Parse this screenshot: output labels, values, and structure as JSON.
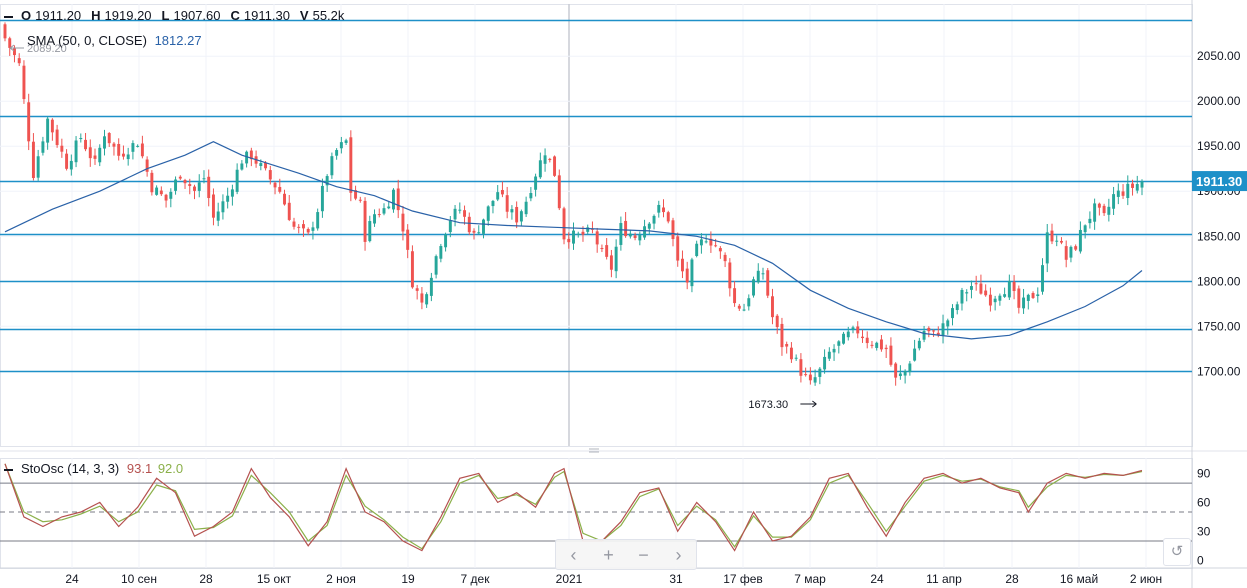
{
  "ohlcv": {
    "o_label": "O",
    "o": "1911.20",
    "h_label": "H",
    "h": "1919.20",
    "l_label": "L",
    "l": "1907.60",
    "c_label": "C",
    "c": "1911.30",
    "v_label": "V",
    "v": "55.2k"
  },
  "sma_legend": {
    "label": "SMA (50, 0, CLOSE)",
    "value": "1812.27",
    "color": "#2a62a8"
  },
  "stoch_legend": {
    "label": "StoOsc (14, 3, 3)",
    "k": "93.1",
    "d": "92.0",
    "k_color": "#b5514f",
    "d_color": "#8bb04a"
  },
  "nav": {
    "left": "‹",
    "plus": "+",
    "minus": "−",
    "right": "›",
    "reset": "↺"
  },
  "colors": {
    "up": "#26a69a",
    "down": "#ef5350",
    "hline": "#1e90c8",
    "price_tag": "#1e90c8"
  },
  "chart_data": {
    "type": "candlestick",
    "y_ticks": [
      1700,
      1750,
      1800,
      1850,
      1900,
      1950,
      2000,
      2050
    ],
    "y_tick_labels": [
      "1700.00",
      "1750.00",
      "1800.00",
      "1850.00",
      "1900.00",
      "1950.00",
      "2000.00",
      "2050.00"
    ],
    "ylim": [
      1617,
      2108
    ],
    "last_price": "1911.30",
    "high_annotation": "2089.20",
    "low_annotation": "1673.30",
    "horizontal_levels": [
      2090,
      1984,
      1911,
      1852,
      1800,
      1747,
      1700
    ],
    "x_labels": [
      "24",
      "10 сен",
      "28",
      "15 окт",
      "2 ноя",
      "19",
      "7 дек",
      "2021",
      "31",
      "17 фев",
      "7 мар",
      "24",
      "11 апр",
      "28",
      "16 май",
      "2 июн"
    ],
    "close_path": [
      [
        0,
        2070
      ],
      [
        3,
        2040
      ],
      [
        6,
        1920
      ],
      [
        9,
        1980
      ],
      [
        13,
        1930
      ],
      [
        16,
        1960
      ],
      [
        19,
        1930
      ],
      [
        21,
        1965
      ],
      [
        24,
        1940
      ],
      [
        28,
        1955
      ],
      [
        31,
        1905
      ],
      [
        34,
        1890
      ],
      [
        37,
        1920
      ],
      [
        40,
        1900
      ],
      [
        42,
        1915
      ],
      [
        44,
        1870
      ],
      [
        47,
        1895
      ],
      [
        50,
        1935
      ],
      [
        52,
        1940
      ],
      [
        55,
        1920
      ],
      [
        58,
        1900
      ],
      [
        61,
        1860
      ],
      [
        64,
        1850
      ],
      [
        66,
        1880
      ],
      [
        68,
        1920
      ],
      [
        70,
        1945
      ],
      [
        72,
        1955
      ],
      [
        73,
        1900
      ],
      [
        75,
        1885
      ],
      [
        76,
        1850
      ],
      [
        78,
        1875
      ],
      [
        80,
        1880
      ],
      [
        82,
        1900
      ],
      [
        84,
        1860
      ],
      [
        86,
        1800
      ],
      [
        88,
        1775
      ],
      [
        90,
        1810
      ],
      [
        92,
        1845
      ],
      [
        94,
        1870
      ],
      [
        96,
        1880
      ],
      [
        99,
        1850
      ],
      [
        101,
        1870
      ],
      [
        104,
        1900
      ],
      [
        106,
        1880
      ],
      [
        108,
        1870
      ],
      [
        110,
        1890
      ],
      [
        112,
        1920
      ],
      [
        114,
        1945
      ],
      [
        116,
        1920
      ],
      [
        118,
        1850
      ],
      [
        121,
        1850
      ],
      [
        124,
        1855
      ],
      [
        126,
        1830
      ],
      [
        128,
        1815
      ],
      [
        130,
        1860
      ],
      [
        133,
        1850
      ],
      [
        136,
        1870
      ],
      [
        138,
        1880
      ],
      [
        140,
        1870
      ],
      [
        142,
        1820
      ],
      [
        144,
        1800
      ],
      [
        146,
        1835
      ],
      [
        148,
        1850
      ],
      [
        150,
        1840
      ],
      [
        152,
        1820
      ],
      [
        154,
        1775
      ],
      [
        156,
        1770
      ],
      [
        158,
        1800
      ],
      [
        160,
        1810
      ],
      [
        162,
        1760
      ],
      [
        164,
        1730
      ],
      [
        166,
        1720
      ],
      [
        168,
        1700
      ],
      [
        170,
        1685
      ],
      [
        172,
        1700
      ],
      [
        174,
        1720
      ],
      [
        176,
        1730
      ],
      [
        178,
        1740
      ],
      [
        180,
        1745
      ],
      [
        182,
        1735
      ],
      [
        184,
        1730
      ],
      [
        186,
        1725
      ],
      [
        188,
        1690
      ],
      [
        190,
        1700
      ],
      [
        192,
        1725
      ],
      [
        194,
        1745
      ],
      [
        196,
        1740
      ],
      [
        198,
        1750
      ],
      [
        200,
        1765
      ],
      [
        202,
        1785
      ],
      [
        204,
        1795
      ],
      [
        206,
        1790
      ],
      [
        208,
        1780
      ],
      [
        210,
        1790
      ],
      [
        212,
        1795
      ],
      [
        214,
        1770
      ],
      [
        216,
        1780
      ],
      [
        218,
        1790
      ],
      [
        220,
        1850
      ],
      [
        222,
        1850
      ],
      [
        224,
        1825
      ],
      [
        226,
        1840
      ],
      [
        228,
        1865
      ],
      [
        230,
        1880
      ],
      [
        232,
        1870
      ],
      [
        234,
        1895
      ],
      [
        236,
        1900
      ],
      [
        238,
        1905
      ],
      [
        240,
        1911
      ]
    ],
    "series": [
      {
        "name": "SMA (50, 0, CLOSE)",
        "points": [
          [
            0,
            1855
          ],
          [
            10,
            1880
          ],
          [
            20,
            1900
          ],
          [
            30,
            1925
          ],
          [
            38,
            1940
          ],
          [
            44,
            1955
          ],
          [
            50,
            1940
          ],
          [
            56,
            1930
          ],
          [
            62,
            1920
          ],
          [
            70,
            1905
          ],
          [
            78,
            1895
          ],
          [
            86,
            1878
          ],
          [
            96,
            1865
          ],
          [
            106,
            1862
          ],
          [
            116,
            1860
          ],
          [
            126,
            1858
          ],
          [
            136,
            1856
          ],
          [
            146,
            1850
          ],
          [
            154,
            1840
          ],
          [
            162,
            1820
          ],
          [
            170,
            1790
          ],
          [
            178,
            1770
          ],
          [
            186,
            1755
          ],
          [
            194,
            1742
          ],
          [
            204,
            1736
          ],
          [
            212,
            1740
          ],
          [
            220,
            1755
          ],
          [
            228,
            1772
          ],
          [
            236,
            1795
          ],
          [
            240,
            1812
          ]
        ]
      }
    ],
    "oscillator": {
      "name": "StoOsc (14, 3, 3)",
      "ylim": [
        -8,
        106
      ],
      "y_ticks": [
        0,
        30,
        60,
        90
      ],
      "y_tick_labels": [
        "0",
        "30",
        "60",
        "90"
      ],
      "levels": [
        80,
        50,
        20
      ],
      "k": [
        [
          0,
          100
        ],
        [
          4,
          45
        ],
        [
          8,
          35
        ],
        [
          12,
          45
        ],
        [
          16,
          50
        ],
        [
          20,
          60
        ],
        [
          24,
          35
        ],
        [
          28,
          55
        ],
        [
          32,
          85
        ],
        [
          36,
          70
        ],
        [
          40,
          25
        ],
        [
          44,
          35
        ],
        [
          48,
          50
        ],
        [
          52,
          95
        ],
        [
          56,
          65
        ],
        [
          60,
          45
        ],
        [
          64,
          15
        ],
        [
          68,
          40
        ],
        [
          72,
          95
        ],
        [
          76,
          50
        ],
        [
          80,
          40
        ],
        [
          84,
          20
        ],
        [
          88,
          10
        ],
        [
          92,
          45
        ],
        [
          96,
          85
        ],
        [
          100,
          90
        ],
        [
          104,
          60
        ],
        [
          108,
          70
        ],
        [
          112,
          55
        ],
        [
          116,
          90
        ],
        [
          118,
          95
        ],
        [
          122,
          20
        ],
        [
          126,
          20
        ],
        [
          130,
          40
        ],
        [
          134,
          70
        ],
        [
          138,
          75
        ],
        [
          142,
          30
        ],
        [
          146,
          60
        ],
        [
          150,
          40
        ],
        [
          154,
          10
        ],
        [
          158,
          50
        ],
        [
          162,
          20
        ],
        [
          166,
          25
        ],
        [
          170,
          45
        ],
        [
          174,
          85
        ],
        [
          178,
          90
        ],
        [
          182,
          55
        ],
        [
          186,
          25
        ],
        [
          190,
          60
        ],
        [
          194,
          85
        ],
        [
          198,
          90
        ],
        [
          202,
          80
        ],
        [
          206,
          85
        ],
        [
          210,
          75
        ],
        [
          214,
          70
        ],
        [
          216,
          50
        ],
        [
          220,
          80
        ],
        [
          224,
          90
        ],
        [
          228,
          85
        ],
        [
          232,
          90
        ],
        [
          236,
          88
        ],
        [
          240,
          93
        ]
      ],
      "d": [
        [
          0,
          100
        ],
        [
          4,
          50
        ],
        [
          8,
          40
        ],
        [
          12,
          42
        ],
        [
          16,
          48
        ],
        [
          20,
          56
        ],
        [
          24,
          40
        ],
        [
          28,
          50
        ],
        [
          32,
          78
        ],
        [
          36,
          72
        ],
        [
          40,
          32
        ],
        [
          44,
          34
        ],
        [
          48,
          46
        ],
        [
          52,
          88
        ],
        [
          56,
          70
        ],
        [
          60,
          50
        ],
        [
          64,
          20
        ],
        [
          68,
          36
        ],
        [
          72,
          88
        ],
        [
          76,
          56
        ],
        [
          80,
          42
        ],
        [
          84,
          24
        ],
        [
          88,
          12
        ],
        [
          92,
          40
        ],
        [
          96,
          80
        ],
        [
          100,
          88
        ],
        [
          104,
          64
        ],
        [
          108,
          68
        ],
        [
          112,
          58
        ],
        [
          116,
          86
        ],
        [
          118,
          92
        ],
        [
          122,
          28
        ],
        [
          126,
          20
        ],
        [
          130,
          36
        ],
        [
          134,
          66
        ],
        [
          138,
          74
        ],
        [
          142,
          36
        ],
        [
          146,
          56
        ],
        [
          150,
          42
        ],
        [
          154,
          14
        ],
        [
          158,
          46
        ],
        [
          162,
          24
        ],
        [
          166,
          24
        ],
        [
          170,
          42
        ],
        [
          174,
          80
        ],
        [
          178,
          88
        ],
        [
          182,
          60
        ],
        [
          186,
          30
        ],
        [
          190,
          56
        ],
        [
          194,
          82
        ],
        [
          198,
          88
        ],
        [
          202,
          82
        ],
        [
          206,
          84
        ],
        [
          210,
          76
        ],
        [
          214,
          72
        ],
        [
          216,
          55
        ],
        [
          220,
          76
        ],
        [
          224,
          88
        ],
        [
          228,
          86
        ],
        [
          232,
          89
        ],
        [
          236,
          88
        ],
        [
          240,
          92
        ]
      ]
    }
  }
}
